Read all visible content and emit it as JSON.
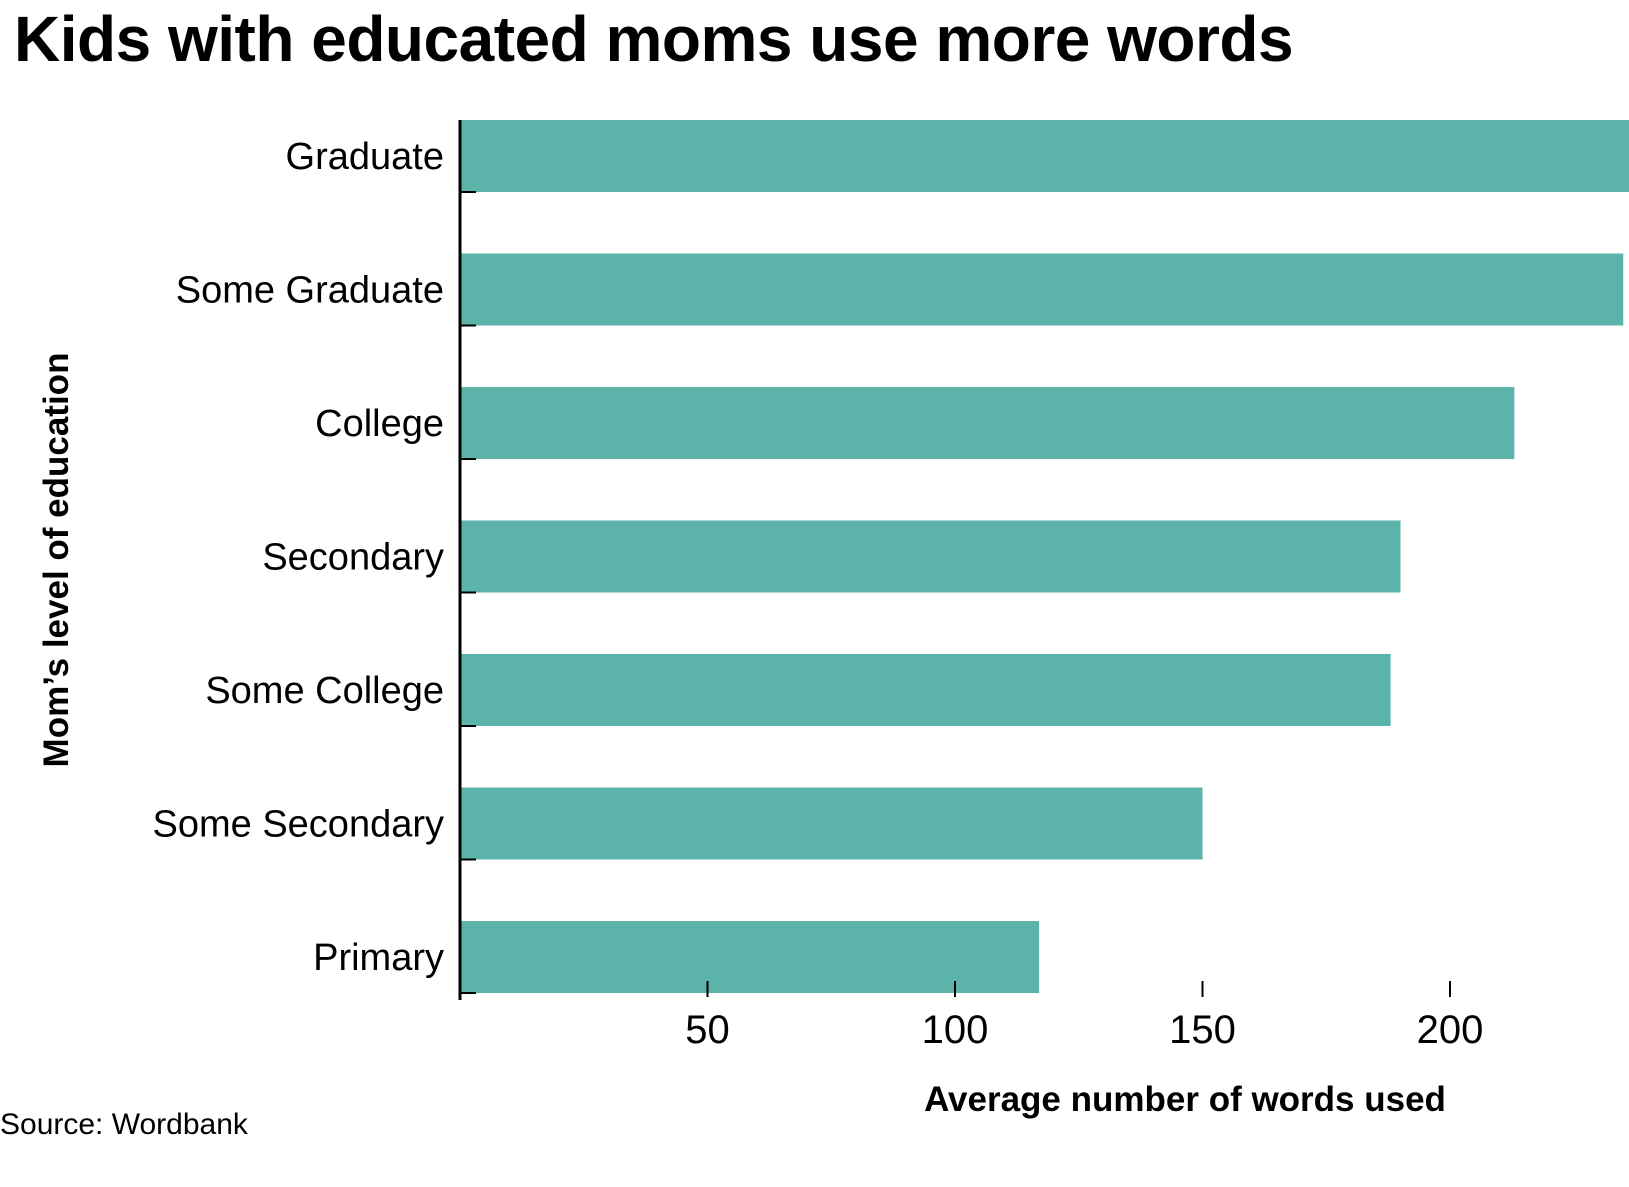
{
  "chart_data": {
    "type": "bar",
    "orientation": "horizontal",
    "title": "Kids with educated moms use more words",
    "xlabel": "Average number of words used",
    "ylabel": "Mom’s level of education",
    "categories": [
      "Graduate",
      "Some Graduate",
      "College",
      "Secondary",
      "Some College",
      "Some Secondary",
      "Primary"
    ],
    "values": [
      237,
      235,
      213,
      190,
      188,
      150,
      117
    ],
    "xticks": [
      50,
      100,
      150,
      200
    ],
    "xlim": [
      0,
      237
    ],
    "bar_color": "#5bb3aa",
    "grid": false,
    "legend": "none"
  },
  "source": "Source: Wordbank"
}
